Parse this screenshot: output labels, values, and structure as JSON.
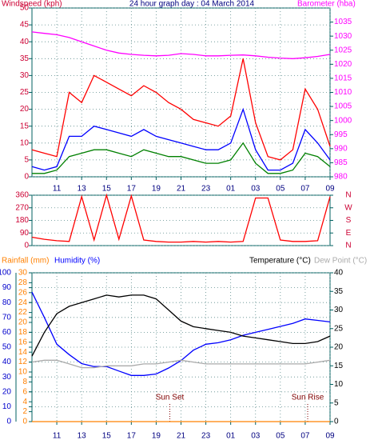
{
  "chart_data": [
    {
      "type": "line",
      "title": "24 hour graph day : 04 March 2014",
      "y_label": "Windspeed (kph)",
      "y2_label": "Barometer (hba)",
      "title_color": "#000080",
      "y_color": "#cc0033",
      "y2_color": "#ff00ff",
      "grid": true,
      "x": [
        9,
        10,
        11,
        12,
        13,
        14,
        15,
        16,
        17,
        18,
        19,
        20,
        21,
        22,
        23,
        24,
        25,
        26,
        27,
        28,
        29,
        30,
        31,
        32,
        33
      ],
      "xlim": [
        9,
        33
      ],
      "xticks": [
        11,
        13,
        15,
        17,
        19,
        21,
        23,
        {
          "value": 25,
          "label": "01"
        },
        {
          "value": 27,
          "label": "03"
        },
        {
          "value": 29,
          "label": "05"
        },
        {
          "value": 31,
          "label": "07"
        },
        {
          "value": 33,
          "label": "09"
        }
      ],
      "ylim": [
        0,
        50
      ],
      "yticks": [
        0,
        5,
        10,
        15,
        20,
        25,
        30,
        35,
        40,
        45,
        50
      ],
      "y2lim": [
        980,
        1040
      ],
      "y2ticks": [
        980,
        985,
        990,
        995,
        1000,
        1005,
        1010,
        1015,
        1020,
        1025,
        1030,
        1035
      ],
      "series": [
        {
          "color": "#ff0000",
          "values": [
            8,
            7,
            6,
            25,
            22,
            30,
            28,
            26,
            24,
            27,
            25,
            22,
            20,
            17,
            16,
            15,
            18,
            35,
            16,
            6,
            5,
            8,
            26,
            20,
            9
          ]
        },
        {
          "color": "#0000ff",
          "values": [
            3,
            2,
            3,
            12,
            12,
            15,
            14,
            13,
            12,
            14,
            12,
            11,
            10,
            9,
            8,
            8,
            10,
            20,
            8,
            2,
            2,
            4,
            14,
            10,
            5
          ]
        },
        {
          "color": "#008000",
          "values": [
            1,
            1,
            2,
            6,
            7,
            8,
            8,
            7,
            6,
            8,
            7,
            6,
            6,
            5,
            4,
            4,
            5,
            10,
            4,
            1,
            1,
            2,
            7,
            6,
            3
          ]
        },
        {
          "color": "#ff00ff",
          "axis": "y2",
          "values": [
            1031.5,
            1031,
            1030.5,
            1029.5,
            1028,
            1026.5,
            1025,
            1024,
            1023.5,
            1023.2,
            1023,
            1023.2,
            1023.8,
            1023.5,
            1023,
            1023,
            1023.2,
            1023.3,
            1023,
            1022.5,
            1022.2,
            1022,
            1022.3,
            1022.8,
            1023.5
          ]
        }
      ]
    },
    {
      "type": "line",
      "y_color": "#cc0033",
      "y2_color": "#cc0033",
      "grid": true,
      "x": [
        9,
        10,
        11,
        12,
        13,
        14,
        15,
        16,
        17,
        18,
        19,
        20,
        21,
        22,
        23,
        24,
        25,
        26,
        27,
        28,
        29,
        30,
        31,
        32,
        33
      ],
      "xlim": [
        9,
        33
      ],
      "ylim": [
        0,
        360
      ],
      "yticks": [
        0,
        90,
        180,
        270,
        360
      ],
      "y2lim": [
        0,
        360
      ],
      "y2ticks": [
        {
          "value": 0,
          "label": "N"
        },
        {
          "value": 90,
          "label": "E"
        },
        {
          "value": 180,
          "label": "S"
        },
        {
          "value": 270,
          "label": "W"
        },
        {
          "value": 360,
          "label": "N"
        }
      ],
      "series": [
        {
          "color": "#ff0000",
          "values": [
            60,
            45,
            35,
            30,
            350,
            40,
            360,
            45,
            355,
            40,
            30,
            25,
            25,
            30,
            25,
            30,
            25,
            30,
            340,
            340,
            40,
            30,
            30,
            35,
            350
          ]
        }
      ]
    },
    {
      "type": "line",
      "y_color": "#0000cc",
      "y2_color": "#000000",
      "y3_color": "#ff8000",
      "grid": true,
      "x": [
        9,
        10,
        11,
        12,
        13,
        14,
        15,
        16,
        17,
        18,
        19,
        20,
        21,
        22,
        23,
        24,
        25,
        26,
        27,
        28,
        29,
        30,
        31,
        32,
        33
      ],
      "xlim": [
        9,
        33
      ],
      "xticks": [
        11,
        13,
        15,
        17,
        19,
        21,
        23,
        {
          "value": 25,
          "label": "01"
        },
        {
          "value": 27,
          "label": "03"
        },
        {
          "value": 29,
          "label": "05"
        },
        {
          "value": 31,
          "label": "07"
        },
        {
          "value": 33,
          "label": "09"
        }
      ],
      "ylim": [
        0,
        100
      ],
      "yticks": [
        0,
        10,
        20,
        30,
        40,
        50,
        60,
        70,
        80,
        90,
        100
      ],
      "y2lim": [
        0,
        40
      ],
      "y2ticks": [
        0,
        5,
        10,
        15,
        20,
        25,
        30,
        35,
        40
      ],
      "y3lim": [
        0,
        30
      ],
      "y3ticks": [
        0,
        2,
        4,
        6,
        8,
        10,
        12,
        14,
        16,
        18,
        20,
        22,
        24,
        26,
        28,
        30
      ],
      "annotations": [
        {
          "text": "Sun Set",
          "x": 20.1
        },
        {
          "text": "Sun Rise",
          "x": 31.2
        }
      ],
      "series": [
        {
          "name": "Rainfall (mm)",
          "color": "#ff8000",
          "axis": "y3",
          "values": [
            0,
            0,
            0,
            0,
            0,
            0,
            0,
            0,
            0,
            0,
            0,
            0,
            0,
            0,
            0,
            0,
            0,
            0,
            0,
            0,
            0,
            0,
            0,
            0,
            0
          ]
        },
        {
          "name": "Humidity (%)",
          "color": "#0000ff",
          "values": [
            87,
            70,
            52,
            45,
            39,
            37,
            37,
            34,
            31,
            31,
            32,
            36,
            41,
            48,
            52,
            53,
            55,
            58,
            60,
            62,
            64,
            66,
            69,
            68,
            67
          ]
        },
        {
          "name": "Temperature (°C)",
          "color": "#000000",
          "axis": "y2",
          "values": [
            17.6,
            24,
            29,
            31,
            32,
            33,
            34,
            33.5,
            34,
            34,
            33,
            30,
            27,
            25.5,
            25,
            24.5,
            24,
            23,
            22.5,
            22,
            21.5,
            21,
            21,
            21.5,
            23
          ]
        },
        {
          "name": "Dew Point (°C)",
          "color": "#aaaaaa",
          "axis": "y2",
          "values": [
            16,
            16.5,
            16.5,
            15.5,
            14.5,
            14.5,
            15,
            15,
            15,
            15.5,
            15.5,
            16,
            16.5,
            16,
            15.5,
            15.5,
            15.5,
            15.5,
            15.5,
            15.5,
            15.5,
            15.5,
            15.5,
            16,
            16.5
          ]
        }
      ]
    }
  ]
}
